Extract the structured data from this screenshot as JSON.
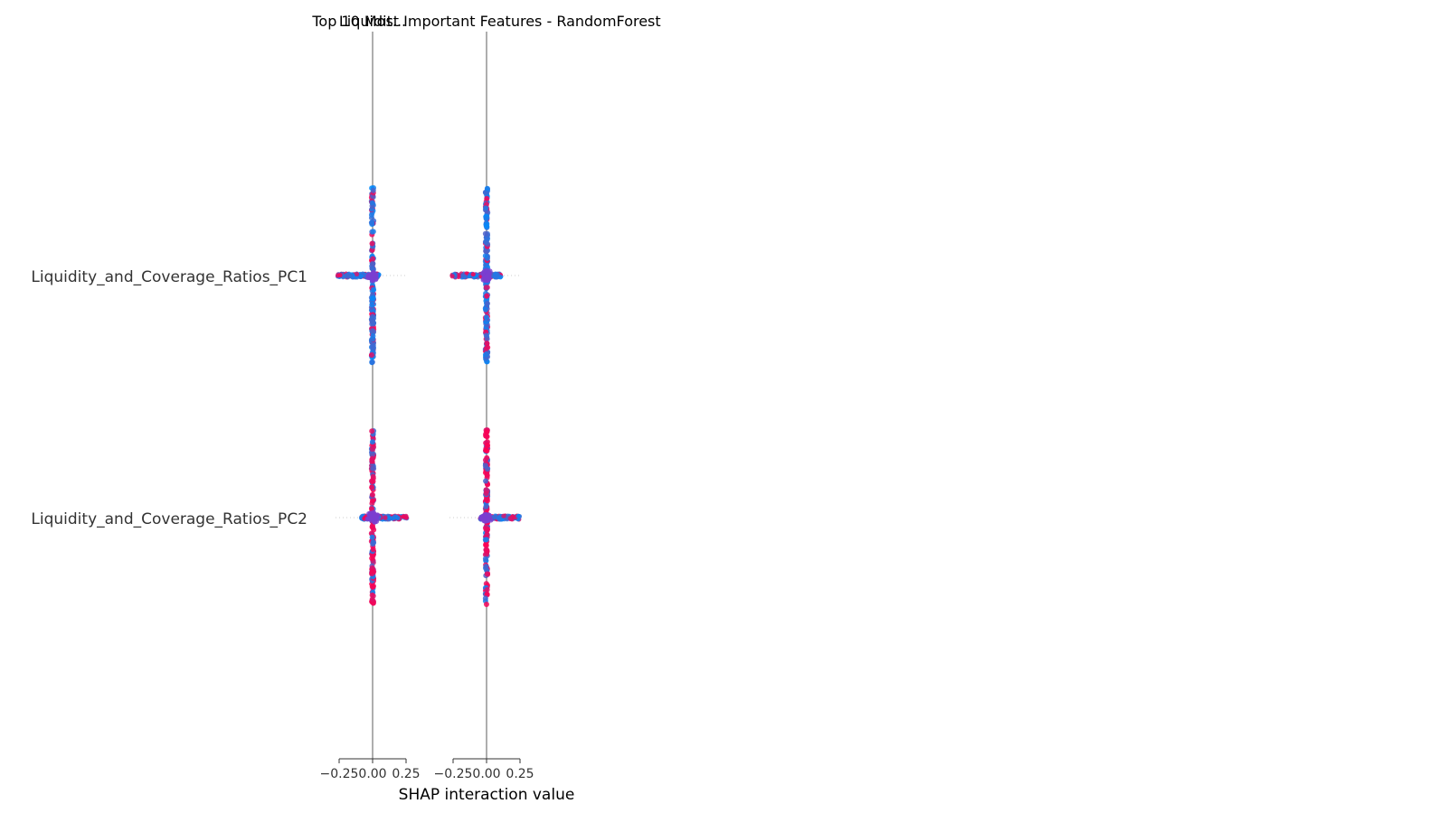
{
  "chart_data": {
    "type": "scatter",
    "subtype": "shap-interaction-summary",
    "titles": [
      "Top 10 Most Important Features - RandomForest",
      "Liquidit..."
    ],
    "features": [
      "Liquidity_and_Coverage_Ratios_PC1",
      "Liquidity_and_Coverage_Ratios_PC2"
    ],
    "xlabel": "SHAP interaction value",
    "xlim": [
      -0.25,
      0.25
    ],
    "xticks": [
      -0.25,
      0.0,
      0.25
    ],
    "xtick_labels": [
      "−0.25",
      "0.00",
      "0.25"
    ],
    "colors": {
      "low": "#008bfb",
      "high": "#ff0052",
      "mid": "#7b3fd0",
      "zero_line": "#999999"
    },
    "panels": [
      {
        "column_feature": "Liquidity_and_Coverage_Ratios_PC1",
        "rows": [
          {
            "feature": "Liquidity_and_Coverage_Ratios_PC1",
            "xmin": -0.26,
            "xmax": 0.05,
            "spread": 0.72
          },
          {
            "feature": "Liquidity_and_Coverage_Ratios_PC2",
            "xmin": -0.09,
            "xmax": 0.26,
            "spread": 0.72
          }
        ]
      },
      {
        "column_feature": "Liquidity_and_Coverage_Ratios_PC2",
        "rows": [
          {
            "feature": "Liquidity_and_Coverage_Ratios_PC1",
            "xmin": -0.26,
            "xmax": 0.11,
            "spread": 0.72
          },
          {
            "feature": "Liquidity_and_Coverage_Ratios_PC2",
            "xmin": -0.05,
            "xmax": 0.25,
            "spread": 0.72
          }
        ]
      }
    ],
    "grid": false,
    "legend": "none"
  }
}
